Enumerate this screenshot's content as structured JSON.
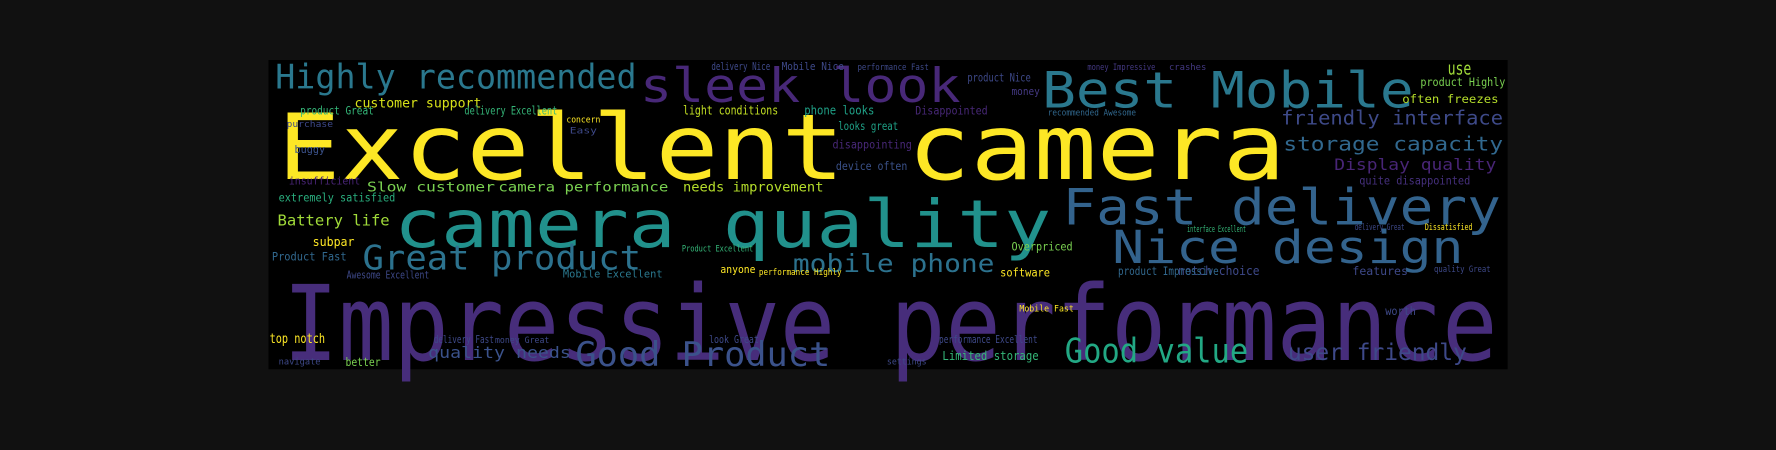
{
  "words": [
    {
      "text": "Excellent camera",
      "color": "#fde725"
    },
    {
      "text": "Impressive performance",
      "color": "#472d7b"
    },
    {
      "text": "camera quality",
      "color": "#21918c"
    },
    {
      "text": "sleek look",
      "color": "#482878"
    },
    {
      "text": "Best Mobile",
      "color": "#2a788e"
    },
    {
      "text": "Highly recommended",
      "color": "#2a788e"
    },
    {
      "text": "Fast delivery",
      "color": "#33638d"
    },
    {
      "text": "Nice design",
      "color": "#33638d"
    },
    {
      "text": "Great product",
      "color": "#2c728e"
    },
    {
      "text": "Good Product",
      "color": "#3b528b"
    },
    {
      "text": "Good value",
      "color": "#22a884"
    },
    {
      "text": "mobile phone",
      "color": "#2c728e"
    },
    {
      "text": "user friendly",
      "color": "#3e4989"
    },
    {
      "text": "friendly interface",
      "color": "#3e4a89"
    },
    {
      "text": "storage capacity",
      "color": "#31688e"
    },
    {
      "text": "Display quality",
      "color": "#482576"
    },
    {
      "text": "quality needs",
      "color": "#3b528b"
    },
    {
      "text": "Slow customer",
      "color": "#7ad151"
    },
    {
      "text": "camera performance",
      "color": "#7ad151"
    },
    {
      "text": "needs improvement",
      "color": "#b5de2b"
    },
    {
      "text": "customer support",
      "color": "#d8e219"
    },
    {
      "text": "light conditions",
      "color": "#c2df23"
    },
    {
      "text": "Battery life",
      "color": "#a0da39"
    },
    {
      "text": "top notch",
      "color": "#fde725"
    },
    {
      "text": "subpar",
      "color": "#fde725"
    },
    {
      "text": "extremely satisfied",
      "color": "#2ab07f"
    },
    {
      "text": "use",
      "color": "#a0da39"
    },
    {
      "text": "often freezes",
      "color": "#b5de2b"
    },
    {
      "text": "Limited storage",
      "color": "#35b779"
    },
    {
      "text": "notch choice",
      "color": "#3e4989"
    },
    {
      "text": "features",
      "color": "#3e4989"
    },
    {
      "text": "worth",
      "color": "#3e4989"
    },
    {
      "text": "Overpriced",
      "color": "#7ad151"
    },
    {
      "text": "software",
      "color": "#fde725"
    },
    {
      "text": "phone looks",
      "color": "#1fa187"
    },
    {
      "text": "looks great",
      "color": "#1fa187"
    },
    {
      "text": "disappointing",
      "color": "#482878"
    },
    {
      "text": "device often",
      "color": "#3b528b"
    },
    {
      "text": "Disappointed",
      "color": "#482878"
    },
    {
      "text": "quite disappointed",
      "color": "#46307e"
    },
    {
      "text": "product Impressive",
      "color": "#31688e"
    },
    {
      "text": "anyone",
      "color": "#fde725"
    },
    {
      "text": "Product Fast",
      "color": "#31688e"
    },
    {
      "text": "Awesome Excellent",
      "color": "#3e4989"
    },
    {
      "text": "Mobile Excellent",
      "color": "#2a788e"
    },
    {
      "text": "delivery Excellent",
      "color": "#35b779"
    },
    {
      "text": "product Great",
      "color": "#35b779"
    },
    {
      "text": "Mobile Nice",
      "color": "#3e4989"
    },
    {
      "text": "delivery Nice",
      "color": "#3e4989"
    },
    {
      "text": "performance Fast",
      "color": "#3e4989"
    },
    {
      "text": "money Impressive",
      "color": "#443983"
    },
    {
      "text": "crashes",
      "color": "#443983"
    },
    {
      "text": "money",
      "color": "#443983"
    },
    {
      "text": "product Nice",
      "color": "#3e4989"
    },
    {
      "text": "product Highly",
      "color": "#7ad151"
    },
    {
      "text": "recommended Awesome",
      "color": "#31688e"
    },
    {
      "text": "performance Excellent",
      "color": "#3e4989"
    },
    {
      "text": "settings",
      "color": "#3e4989"
    },
    {
      "text": "navigate",
      "color": "#3e4989"
    },
    {
      "text": "better",
      "color": "#7ad151"
    },
    {
      "text": "look Great",
      "color": "#3e4989"
    },
    {
      "text": "delivery Fast",
      "color": "#3e4989"
    },
    {
      "text": "money Great",
      "color": "#3e4989"
    },
    {
      "text": "interface Excellent",
      "color": "#35b779"
    },
    {
      "text": "Dissatisfied",
      "color": "#fde725"
    },
    {
      "text": "delivery Great",
      "color": "#3e4989"
    },
    {
      "text": "Mobile Fast",
      "color": "#fde725"
    },
    {
      "text": "buggy",
      "color": "#3b528b"
    },
    {
      "text": "purchase",
      "color": "#3e4989"
    },
    {
      "text": "insufficient",
      "color": "#482475"
    },
    {
      "text": "quality Great",
      "color": "#3e4989"
    },
    {
      "text": "concern",
      "color": "#fde725"
    },
    {
      "text": "Easy",
      "color": "#3e4989"
    },
    {
      "text": "performance Highly",
      "color": "#fde725"
    },
    {
      "text": "Product Excellent",
      "color": "#35b779"
    }
  ]
}
